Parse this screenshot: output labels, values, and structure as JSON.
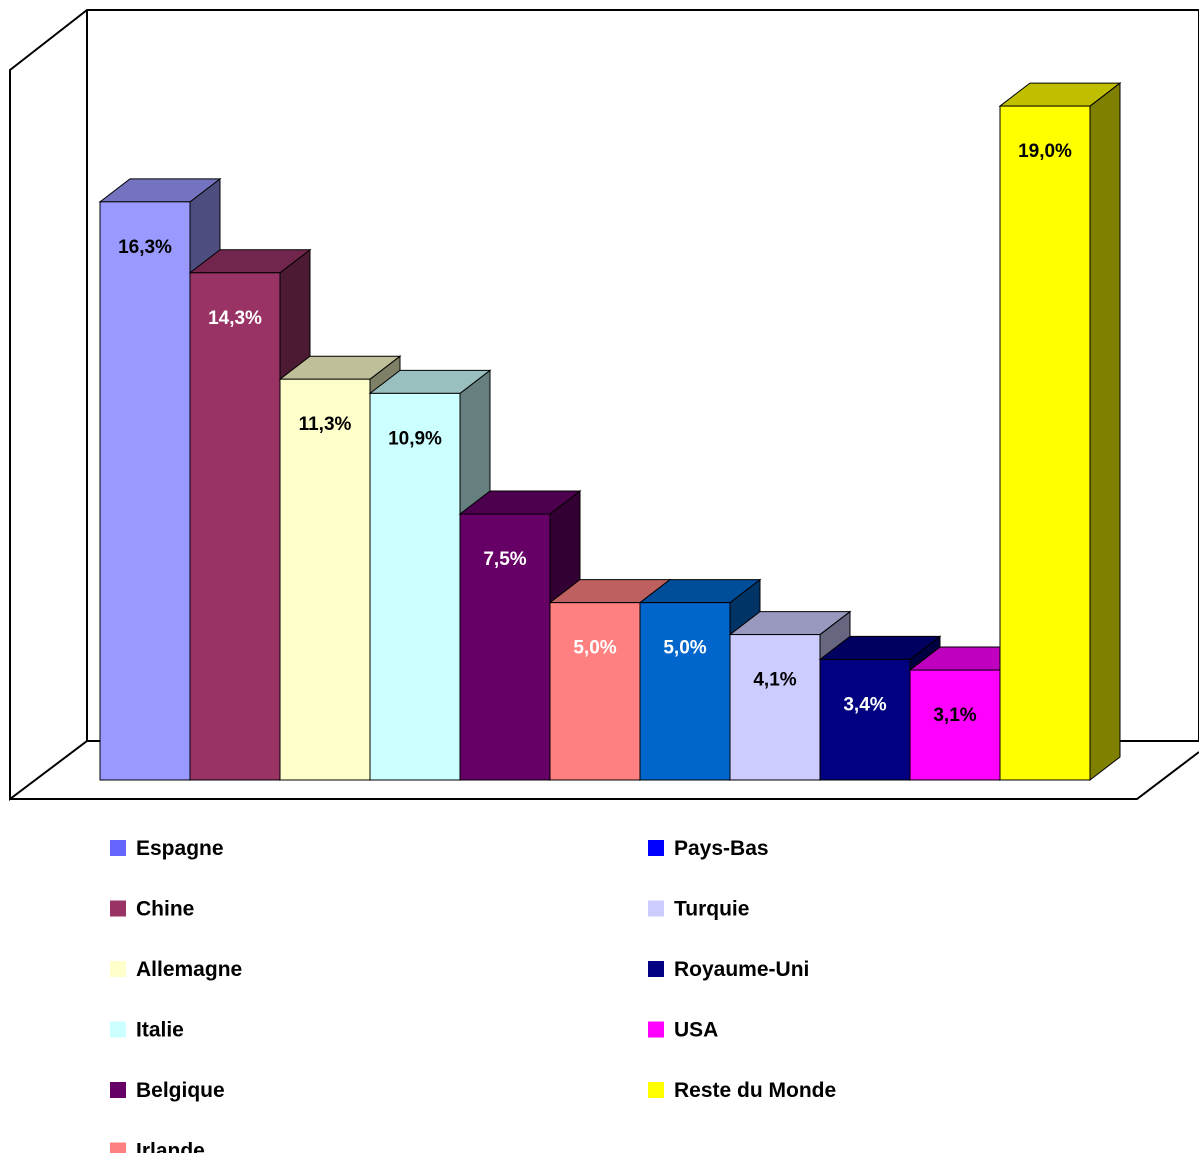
{
  "chart_data": {
    "type": "bar",
    "three_d": true,
    "categories": [
      "Espagne",
      "Chine",
      "Allemagne",
      "Italie",
      "Belgique",
      "Irlande",
      "Pays-Bas",
      "Turquie",
      "Royaume-Uni",
      "USA",
      "Reste du Monde"
    ],
    "values": [
      16.3,
      14.3,
      11.3,
      10.9,
      7.5,
      5.0,
      5.0,
      4.1,
      3.4,
      3.1,
      19.0
    ],
    "data_labels": [
      "16,3%",
      "14,3%",
      "11,3%",
      "10,9%",
      "7,5%",
      "5,0%",
      "5,0%",
      "4,1%",
      "3,4%",
      "3,1%",
      "19,0%"
    ],
    "colors": [
      "#9999ff",
      "#993366",
      "#ffffcc",
      "#ccffff",
      "#660066",
      "#ff8080",
      "#0066cc",
      "#ccccff",
      "#000080",
      "#ff00ff",
      "#ffff00"
    ],
    "label_colors": [
      "#000000",
      "#ffffff",
      "#000000",
      "#000000",
      "#ffffff",
      "#ffffff",
      "#ffffff",
      "#000000",
      "#ffffff",
      "#000000",
      "#000000"
    ],
    "legend_swatch_colors": [
      "#6666ff",
      "#993366",
      "#ffffcc",
      "#ccffff",
      "#660066",
      "#ff8080",
      "#0000ff",
      "#ccccff",
      "#000080",
      "#ff00ff",
      "#ffff00"
    ],
    "ylim": [
      0,
      20
    ],
    "title": "",
    "xlabel": "",
    "ylabel": "",
    "grid": false,
    "legend": {
      "placement": "bottom",
      "columns": [
        [
          "Espagne",
          "Chine",
          "Allemagne",
          "Italie",
          "Belgique",
          "Irlande"
        ],
        [
          "Pays-Bas",
          "Turquie",
          "Royaume-Uni",
          "USA",
          "Reste du Monde"
        ]
      ]
    }
  }
}
